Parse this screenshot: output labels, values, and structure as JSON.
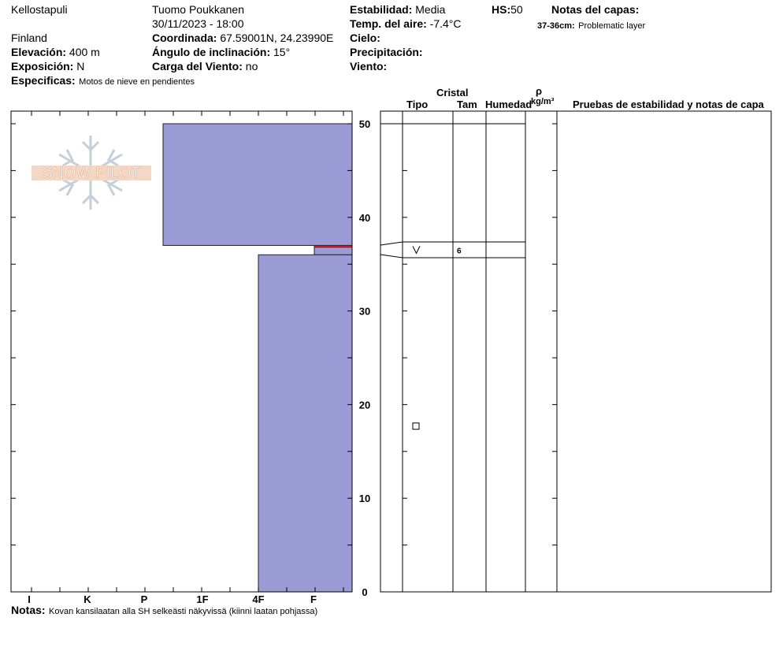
{
  "header": {
    "location": "Kellostapuli",
    "country": "Finland",
    "observer": "Tuomo Poukkanen",
    "datetime": "30/11/2023 - 18:00",
    "elevation_label": "Elevación:",
    "elevation_value": "400 m",
    "exposition_label": "Exposición:",
    "exposition_value": "N",
    "specifics_label": "Especificas:",
    "specifics_value": "Motos de nieve en pendientes",
    "coord_label": "Coordinada:",
    "coord_value": "67.59001N, 24.23990E",
    "slope_label": "Ángulo de inclinación:",
    "slope_value": "15°",
    "wind_load_label": "Carga del Viento:",
    "wind_load_value": "no",
    "stability_label": "Estabilidad:",
    "stability_value": "Media",
    "air_temp_label": "Temp. del aire:",
    "air_temp_value": "-7.4°C",
    "sky_label": "Cielo:",
    "precip_label": "Precipitación:",
    "wind_label": "Viento:",
    "hs_label": "HS:",
    "hs_value": "50",
    "layer_notes_label": "Notas del capas:",
    "layer_note_range": "37-36cm:",
    "layer_note_text": "Problematic layer"
  },
  "logo": {
    "text": "SNOW PILOT"
  },
  "columns": {
    "cristal": "Cristal",
    "tipo": "Tipo",
    "tam": "Tam",
    "humedad": "Humedad",
    "rho": "ρ",
    "density_unit": "kg/m³",
    "tests": "Pruebas de estabilidad y notas de capa"
  },
  "footer": {
    "notes_label": "Notas:",
    "notes_text": "Kovan kansilaatan alla SH selkeästi näkyvissä (kiinni laatan pohjassa)"
  },
  "chart_data": {
    "type": "bar",
    "y_axis": {
      "ylim": [
        0,
        50
      ],
      "ticks": [
        "0",
        "10",
        "20",
        "30",
        "40",
        "50"
      ]
    },
    "hardness_axis": {
      "ticks": [
        "I",
        "K",
        "P",
        "1F",
        "4F",
        "F"
      ]
    },
    "layers": [
      {
        "top": 50,
        "bottom": 37,
        "hardness": "1F-",
        "crystal": "",
        "size": ""
      },
      {
        "top": 37,
        "bottom": 36,
        "hardness": "F+",
        "crystal": "V",
        "size": "6",
        "problematic": true
      },
      {
        "top": 36,
        "bottom": 0,
        "hardness": "4F",
        "crystal": "□",
        "size": ""
      }
    ],
    "colors": {
      "layer_fill": "#9b9bd6",
      "problematic_line": "#cc0000"
    }
  }
}
